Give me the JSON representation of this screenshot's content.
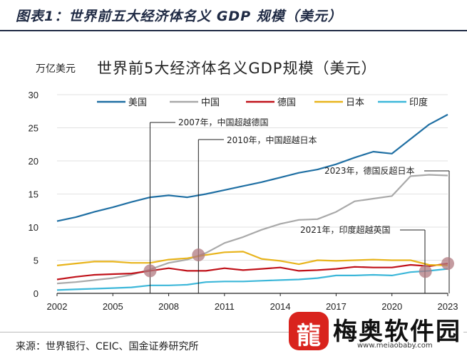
{
  "header": {
    "title": "图表1：世界前五大经济体名义 GDP 规模（美元）"
  },
  "footer": {
    "source": "来源：世界银行、CEIC、国金证券研究所"
  },
  "watermark": {
    "brand": "梅奥软件园",
    "url": "www.meiaobaby.com"
  },
  "colors": {
    "us": "#1f6fa3",
    "china": "#a9a9a9",
    "germany": "#c0121a",
    "japan": "#e8b41c",
    "india": "#3cb7d9",
    "marker": "#b07a80"
  },
  "chart_data": {
    "type": "line",
    "title": "世界前5大经济体名义GDP规模（美元）",
    "unit": "万亿美元",
    "x": [
      2002,
      2003,
      2004,
      2005,
      2006,
      2007,
      2008,
      2009,
      2010,
      2011,
      2012,
      2013,
      2014,
      2015,
      2016,
      2017,
      2018,
      2019,
      2020,
      2021,
      2022,
      2023
    ],
    "xticks": [
      2002,
      2005,
      2008,
      2011,
      2014,
      2017,
      2020,
      2023
    ],
    "yticks": [
      0,
      5,
      10,
      15,
      20,
      25,
      30
    ],
    "xlim": [
      2002,
      2023
    ],
    "ylim": [
      0,
      30
    ],
    "legend_position": "top",
    "series": [
      {
        "name": "美国",
        "values": [
          10.9,
          11.5,
          12.3,
          13.0,
          13.8,
          14.5,
          14.8,
          14.5,
          15.0,
          15.6,
          16.2,
          16.8,
          17.5,
          18.2,
          18.7,
          19.5,
          20.5,
          21.4,
          21.1,
          23.3,
          25.5,
          27.0
        ]
      },
      {
        "name": "中国",
        "values": [
          1.5,
          1.7,
          2.0,
          2.3,
          2.8,
          3.6,
          4.6,
          5.1,
          6.1,
          7.6,
          8.5,
          9.6,
          10.5,
          11.1,
          11.2,
          12.3,
          13.9,
          14.3,
          14.7,
          17.7,
          17.9,
          17.8
        ]
      },
      {
        "name": "德国",
        "values": [
          2.1,
          2.5,
          2.8,
          2.9,
          3.0,
          3.4,
          3.8,
          3.4,
          3.4,
          3.8,
          3.5,
          3.7,
          3.9,
          3.4,
          3.5,
          3.7,
          4.0,
          3.9,
          3.9,
          4.3,
          4.1,
          4.5
        ]
      },
      {
        "name": "日本",
        "values": [
          4.2,
          4.5,
          4.8,
          4.8,
          4.6,
          4.6,
          5.1,
          5.3,
          5.8,
          6.2,
          6.3,
          5.2,
          4.9,
          4.4,
          5.0,
          4.9,
          5.0,
          5.1,
          5.0,
          5.0,
          4.3,
          4.2
        ]
      },
      {
        "name": "印度",
        "values": [
          0.5,
          0.6,
          0.7,
          0.8,
          0.9,
          1.2,
          1.2,
          1.3,
          1.7,
          1.8,
          1.8,
          1.9,
          2.0,
          2.1,
          2.3,
          2.7,
          2.7,
          2.8,
          2.7,
          3.2,
          3.4,
          3.7
        ]
      }
    ],
    "annotations": [
      {
        "text": "2007年，中国超越德国",
        "x": 2007,
        "y": 3.4
      },
      {
        "text": "2010年，中国超越日本",
        "x": 2009.6,
        "y": 5.8
      },
      {
        "text": "2023年，德国反超日本",
        "x": 2023,
        "y": 4.5
      },
      {
        "text": "2021年，印度超越英国",
        "x": 2021.8,
        "y": 3.3
      }
    ]
  }
}
